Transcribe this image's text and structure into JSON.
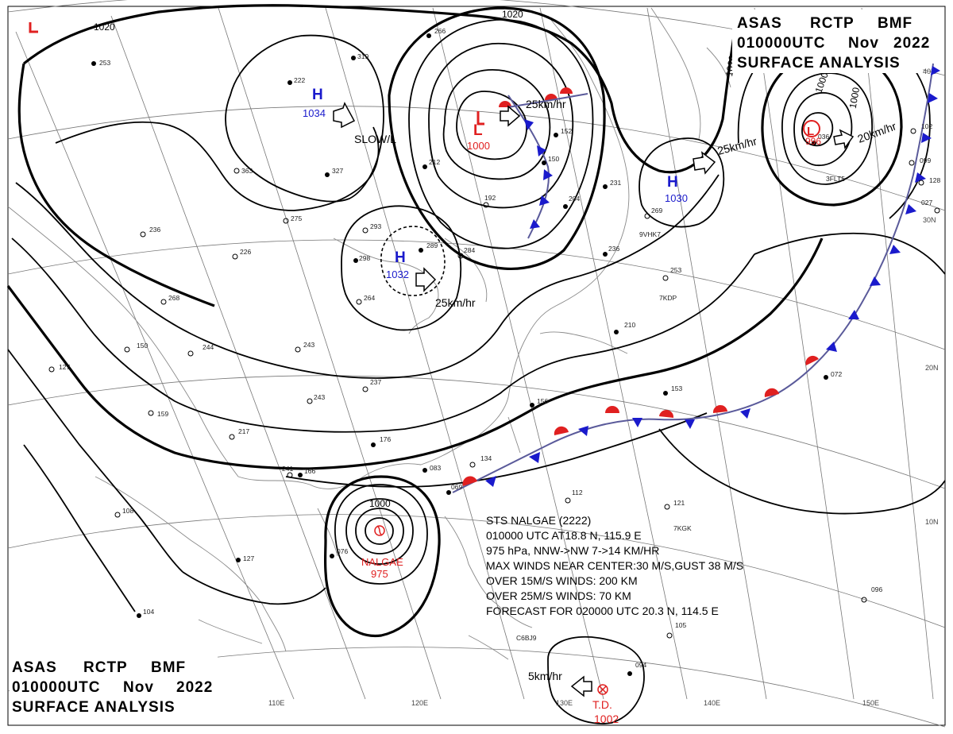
{
  "header": {
    "agency_line": [
      "ASAS",
      "RCTP",
      "BMF"
    ],
    "time_line": [
      "010000UTC",
      "Nov",
      "2022"
    ],
    "product": "SURFACE ANALYSIS"
  },
  "pressure_centers": [
    {
      "id": "h-west",
      "type": "H",
      "value": "1034",
      "motion": "SLOW/L"
    },
    {
      "id": "h-central",
      "type": "H",
      "value": "1032",
      "motion": "25km/hr"
    },
    {
      "id": "l-north",
      "type": "L",
      "value": "1000",
      "motion": "25km/hr"
    },
    {
      "id": "h-east",
      "type": "H",
      "value": "1030",
      "motion": "25km/hr"
    },
    {
      "id": "l-east",
      "type": "L",
      "value": "996",
      "motion": "20km/hr"
    },
    {
      "id": "td",
      "type": "T.D.",
      "value": "1002",
      "motion": "5km/hr"
    },
    {
      "id": "nalgae",
      "type": "NALGAE",
      "value": "975",
      "motion": ""
    }
  ],
  "isobar_labels": [
    "1020",
    "1020",
    "1020",
    "1000",
    "1000",
    "1000"
  ],
  "latitude_labels": [
    "40N",
    "30N",
    "20N",
    "10N"
  ],
  "longitude_labels": [
    "110E",
    "120E",
    "130E",
    "140E",
    "150E"
  ],
  "typhoon_info": {
    "line1": "STS  NALGAE  (2222)",
    "line2": "010000 UTC  AT18.8 N, 115.9 E",
    "line3": "975 hPa, NNW->NW  7->14 KM/HR",
    "line4": "MAX WINDS NEAR CENTER:30 M/S,GUST 38 M/S",
    "line5": "OVER 15M/S WINDS: 200 KM",
    "line6": "OVER 25M/S WINDS: 70 KM",
    "line7": "FORECAST FOR 020000 UTC 20.3 N, 114.5 E"
  },
  "stations": [
    "253",
    "222",
    "319",
    "266",
    "327",
    "363",
    "275",
    "293",
    "289",
    "298",
    "284",
    "236",
    "226",
    "268",
    "264",
    "244",
    "243",
    "237",
    "243",
    "176",
    "150",
    "127",
    "159",
    "217",
    "241",
    "166",
    "104",
    "108",
    "127",
    "076",
    "069",
    "083",
    "134",
    "210",
    "236",
    "253",
    "269",
    "231",
    "204",
    "152",
    "150",
    "192",
    "212",
    "156",
    "153",
    "102",
    "099",
    "128",
    "112",
    "121",
    "096",
    "105",
    "094",
    "036",
    "027",
    "072"
  ],
  "station_ids": [
    "9VHK7",
    "7KDP",
    "7KGK",
    "C6BJ9",
    "3FLT5"
  ],
  "colors": {
    "high": "#1a1acc",
    "low": "#e02020",
    "cold_front": "#1a1acc",
    "warm_front": "#e02020",
    "isobar": "#000000",
    "graticule": "#777777"
  }
}
